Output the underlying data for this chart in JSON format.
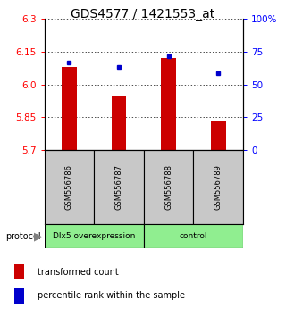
{
  "title": "GDS4577 / 1421553_at",
  "samples": [
    "GSM556786",
    "GSM556787",
    "GSM556788",
    "GSM556789"
  ],
  "red_values": [
    6.08,
    5.95,
    6.12,
    5.83
  ],
  "blue_values": [
    6.1,
    6.08,
    6.13,
    6.05
  ],
  "ymin": 5.7,
  "ymax": 6.3,
  "y2min": 0,
  "y2max": 100,
  "yticks_left": [
    5.7,
    5.85,
    6.0,
    6.15,
    6.3
  ],
  "yticks_right": [
    0,
    25,
    50,
    75,
    100
  ],
  "bar_color": "#cc0000",
  "dot_color": "#0000cc",
  "title_fontsize": 10,
  "tick_fontsize": 7.5,
  "legend_fontsize": 7,
  "sample_label_fontsize": 6,
  "protocol_fontsize": 7,
  "group_label_fontsize": 6.5,
  "group1_label": "Dlx5 overexpression",
  "group2_label": "control",
  "green_color": "#90EE90",
  "gray_color": "#c8c8c8",
  "bar_width": 0.3
}
